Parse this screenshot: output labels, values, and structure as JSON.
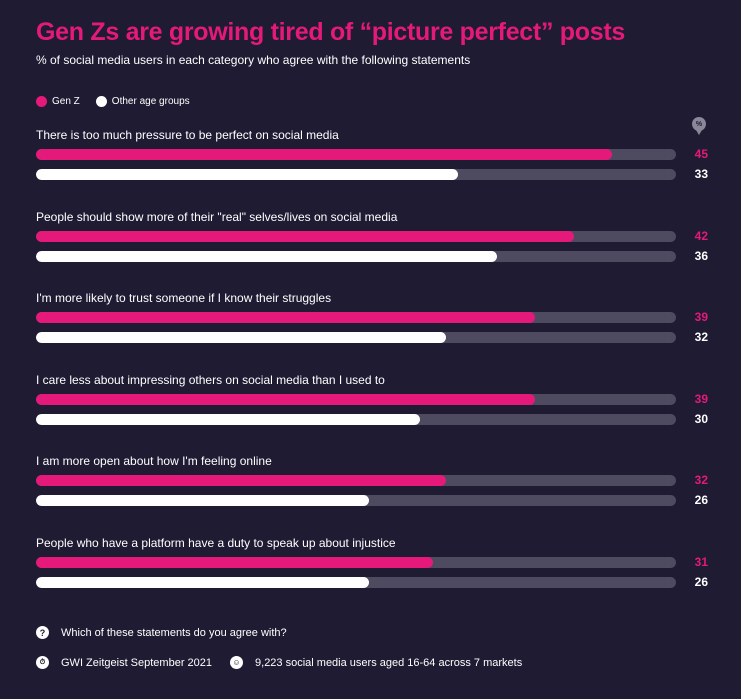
{
  "header": {
    "title": "Gen Zs are growing tired of “picture perfect” posts",
    "subtitle": "% of social media users in each category who agree with the following statements"
  },
  "legend": {
    "gen_z": "Gen Z",
    "other": "Other age groups"
  },
  "badge": "%",
  "colors": {
    "gen_z": "#e5197a",
    "other": "#ffffff",
    "track": "#4e4a5f",
    "background": "#1f1b33"
  },
  "chart_data": {
    "type": "bar",
    "orientation": "horizontal",
    "categories": [
      "There is too much pressure to be perfect on social media",
      "People should show more of their \"real\" selves/lives on social media",
      "I'm more likely to trust someone if I know their struggles",
      "I care less about impressing others on social media than I used to",
      "I am more open about how I'm feeling online",
      "People who have a platform have a duty to speak up about injustice"
    ],
    "series": [
      {
        "name": "Gen Z",
        "values": [
          45,
          42,
          39,
          39,
          32,
          31
        ]
      },
      {
        "name": "Other age groups",
        "values": [
          33,
          36,
          32,
          30,
          26,
          26
        ]
      }
    ],
    "xlim": [
      0,
      50
    ],
    "legend_position": "top-left",
    "grid": false
  },
  "footer": {
    "question": "Which of these statements do you agree with?",
    "source": "GWI Zeitgeist September 2021",
    "sample": "9,223 social media users aged 16-64 across 7 markets"
  }
}
